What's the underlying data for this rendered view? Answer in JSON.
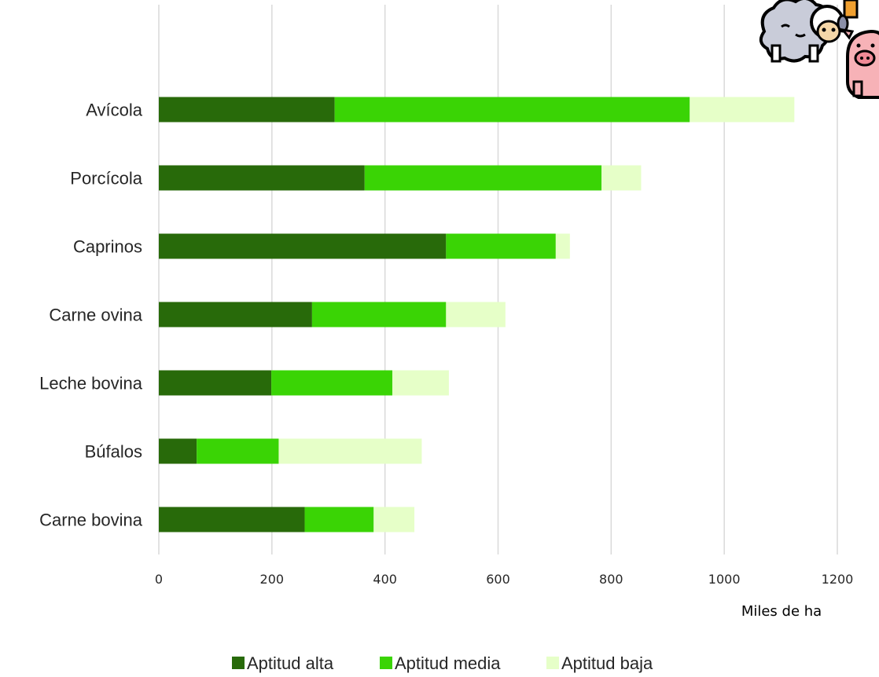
{
  "chart_data": {
    "type": "bar",
    "orientation": "horizontal",
    "stacked": true,
    "categories": [
      "Carne bovina",
      "Búfalos",
      "Leche bovina",
      "Carne ovina",
      "Caprinos",
      "Porcícola",
      "Avícola"
    ],
    "series": [
      {
        "name": "Aptitud alta",
        "color": "#286a0a",
        "values": [
          258,
          67,
          199,
          271,
          508,
          364,
          311
        ]
      },
      {
        "name": "Aptitud media",
        "color": "#3ad405",
        "values": [
          122,
          145,
          214,
          237,
          194,
          419,
          628
        ]
      },
      {
        "name": "Aptitud baja",
        "color": "#e6ffc8",
        "values": [
          72,
          253,
          100,
          105,
          25,
          70,
          185
        ]
      }
    ],
    "xticks": [
      "0",
      "200",
      "400",
      "600",
      "800",
      "1000",
      "1200"
    ],
    "xlim": [
      0,
      1200
    ],
    "xlabel": "Miles de ha",
    "ylabel": "",
    "title": "",
    "grid": "vertical",
    "legend_position": "bottom",
    "gridline_color": "#d9d9d9"
  },
  "decoration": {
    "icon": "farm-animals-icon"
  }
}
